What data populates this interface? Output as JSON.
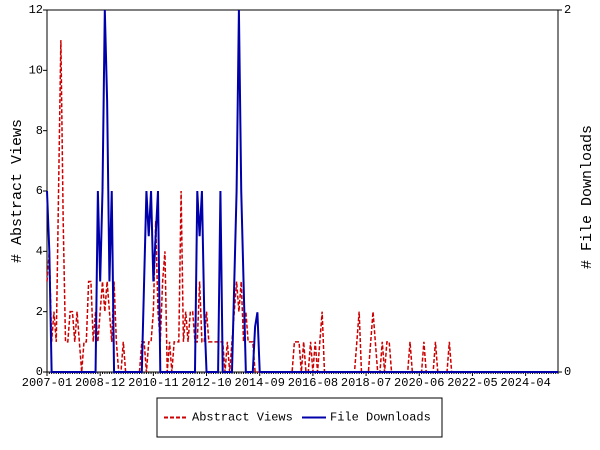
{
  "chart_data": {
    "type": "line",
    "y_label": "# Abstract Views",
    "y2_label": "# File Downloads",
    "categories": [
      "2007-01",
      null,
      null,
      null,
      null,
      null,
      null,
      null,
      null,
      null,
      null,
      null,
      null,
      null,
      null,
      null,
      null,
      null,
      null,
      null,
      null,
      null,
      null,
      "2008-12",
      null,
      null,
      null,
      null,
      null,
      null,
      null,
      null,
      null,
      null,
      null,
      null,
      null,
      null,
      null,
      null,
      null,
      null,
      null,
      null,
      null,
      null,
      "2010-11",
      null,
      null,
      null,
      null,
      null,
      null,
      null,
      null,
      null,
      null,
      null,
      null,
      null,
      null,
      null,
      null,
      null,
      null,
      null,
      null,
      null,
      null,
      "2012-10",
      null,
      null,
      null,
      null,
      null,
      null,
      null,
      null,
      null,
      null,
      null,
      null,
      null,
      null,
      null,
      null,
      null,
      null,
      null,
      null,
      null,
      null,
      "2014-09",
      null,
      null,
      null,
      null,
      null,
      null,
      null,
      null,
      null,
      null,
      null,
      null,
      null,
      null,
      null,
      null,
      null,
      null,
      null,
      null,
      null,
      null,
      "2016-08",
      null,
      null,
      null,
      null,
      null,
      null,
      null,
      null,
      null,
      null,
      null,
      null,
      null,
      null,
      null,
      null,
      null,
      null,
      null,
      null,
      null,
      null,
      "2018-07",
      null,
      null,
      null,
      null,
      null,
      null,
      null,
      null,
      null,
      null,
      null,
      null,
      null,
      null,
      null,
      null,
      null,
      null,
      null,
      null,
      null,
      null,
      "2020-06",
      null,
      null,
      null,
      null,
      null,
      null,
      null,
      null,
      null,
      null,
      null,
      null,
      null,
      null,
      null,
      null,
      null,
      null,
      null,
      null,
      null,
      null,
      "2022-05",
      null,
      null,
      null,
      null,
      null,
      null,
      null,
      null,
      null,
      null,
      null,
      null,
      null,
      null,
      null,
      null,
      null,
      null,
      null,
      null,
      null,
      null,
      "2024-04",
      null,
      null,
      null,
      null,
      null,
      null,
      null,
      null,
      null,
      null,
      null,
      null,
      null,
      null
    ],
    "series": [
      {
        "name": "Abstract Views",
        "color": "#cc0000",
        "dash": true,
        "axis": "y",
        "values": [
          3,
          4,
          1,
          2,
          1,
          6,
          11,
          5,
          1,
          1,
          2,
          2,
          1,
          2,
          1,
          0,
          1,
          1,
          3,
          3,
          1,
          2,
          1,
          2,
          3,
          2,
          3,
          2,
          1,
          3,
          1,
          0,
          0,
          1,
          0,
          0,
          0,
          0,
          0,
          0,
          0,
          1,
          1,
          0,
          1,
          1,
          2,
          5,
          2,
          1,
          3,
          4,
          0,
          1,
          0,
          1,
          1,
          1,
          6,
          1,
          2,
          1,
          2,
          2,
          1,
          1,
          3,
          1,
          1,
          2,
          1,
          1,
          1,
          1,
          1,
          1,
          1,
          0,
          1,
          0,
          1,
          2,
          3,
          2,
          3,
          1,
          2,
          1,
          1,
          1,
          0,
          0,
          0,
          0,
          0,
          0,
          0,
          0,
          0,
          0,
          0,
          0,
          0,
          0,
          0,
          0,
          0,
          1,
          1,
          1,
          0,
          1,
          0,
          0,
          1,
          0,
          1,
          0,
          1,
          2,
          0,
          0,
          0,
          0,
          0,
          0,
          0,
          0,
          0,
          0,
          0,
          0,
          0,
          0,
          1,
          2,
          0,
          0,
          0,
          0,
          1,
          2,
          1,
          0,
          0,
          1,
          0,
          1,
          1,
          0,
          0,
          0,
          0,
          0,
          0,
          0,
          0,
          1,
          0,
          0,
          0,
          0,
          0,
          1,
          0,
          0,
          0,
          0,
          1,
          0,
          0,
          0,
          0,
          0,
          1,
          0,
          0,
          0,
          0,
          0,
          0,
          0,
          0,
          0,
          0,
          0,
          0,
          0,
          0,
          0,
          0,
          0,
          0,
          0,
          0,
          0,
          0,
          0,
          0,
          0,
          0,
          0,
          0,
          0,
          0,
          0,
          0,
          0,
          0,
          0,
          0,
          0,
          0,
          0,
          0,
          0,
          0,
          0,
          0,
          0,
          0,
          0
        ]
      },
      {
        "name": "File Downloads",
        "color": "#0000aa",
        "dash": false,
        "axis": "y2",
        "values": [
          1,
          0.67,
          0,
          0,
          0,
          0,
          0,
          0,
          0,
          0,
          0,
          0,
          0,
          0,
          0,
          0,
          0,
          0,
          0,
          0,
          0,
          0,
          1,
          0.5,
          1,
          2,
          1.5,
          0.5,
          1,
          0,
          0,
          0,
          0,
          0,
          0,
          0,
          0,
          0,
          0,
          0,
          0,
          0,
          0.5,
          1,
          0.75,
          1,
          0.5,
          0.75,
          1,
          0,
          0,
          0,
          0,
          0,
          0,
          0,
          0,
          0,
          0,
          0,
          0,
          0,
          0,
          0,
          0,
          1,
          0.75,
          1,
          0.33,
          0,
          0,
          0,
          0,
          0,
          0,
          1,
          0,
          0,
          0,
          0,
          0,
          0.5,
          1,
          2,
          1,
          0.5,
          0,
          0,
          0,
          0,
          0.25,
          0.33,
          0,
          0,
          0,
          0,
          0,
          0,
          0,
          0,
          0,
          0,
          0,
          0,
          0,
          0,
          0,
          0,
          0,
          0,
          0,
          0,
          0,
          0,
          0,
          0,
          0,
          0,
          0,
          0,
          0,
          0,
          0,
          0,
          0,
          0,
          0,
          0,
          0,
          0,
          0,
          0,
          0,
          0,
          0,
          0,
          0,
          0,
          0,
          0,
          0,
          0,
          0,
          0,
          0,
          0,
          0,
          0,
          0,
          0,
          0,
          0,
          0,
          0,
          0,
          0,
          0,
          0,
          0,
          0,
          0,
          0,
          0,
          0,
          0,
          0,
          0,
          0,
          0,
          0,
          0,
          0,
          0,
          0,
          0,
          0,
          0,
          0,
          0,
          0,
          0,
          0,
          0,
          0,
          0,
          0,
          0,
          0,
          0,
          0,
          0,
          0,
          0,
          0,
          0,
          0,
          0,
          0,
          0,
          0,
          0,
          0,
          0,
          0,
          0,
          0,
          0,
          0,
          0,
          0,
          0,
          0,
          0,
          0,
          0,
          0,
          0,
          0,
          0,
          0,
          0,
          0
        ]
      }
    ],
    "ylim": [
      0,
      12
    ],
    "yticks": [
      0,
      2,
      4,
      6,
      8,
      10,
      12
    ],
    "y2lim": [
      0,
      2
    ],
    "y2ticks": [
      0,
      2
    ],
    "legend": "bottom"
  }
}
